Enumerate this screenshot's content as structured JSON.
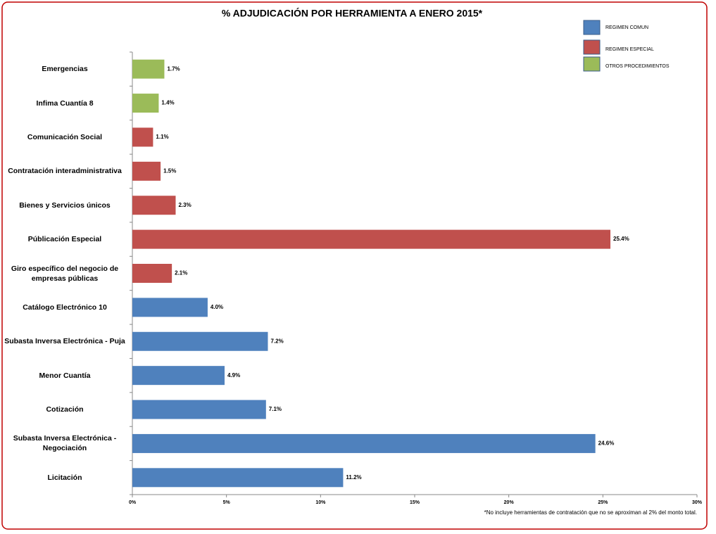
{
  "chart_data": {
    "type": "bar",
    "orientation": "horizontal",
    "title": "% ADJUDICACIÓN POR HERRAMIENTA A ENERO 2015*",
    "categories": [
      "Emergencias",
      "Infima Cuantía 8",
      "Comunicación Social",
      "Contratación interadministrativa",
      "Bienes y Servicios únicos",
      "Públicación Especial",
      "Giro específico del negocio de empresas públicas",
      "Catálogo Electrónico 10",
      "Subasta Inversa Electrónica - Puja",
      "Menor Cuantía",
      "Cotización",
      "Subasta Inversa Electrónica - Negociación",
      "Licitación"
    ],
    "series": [
      {
        "name": "REGIMEN COMUN",
        "color": "#4f81bd",
        "values": [
          null,
          null,
          null,
          null,
          null,
          null,
          null,
          4.0,
          7.2,
          4.9,
          7.1,
          24.6,
          11.2
        ],
        "value_labels": [
          null,
          null,
          null,
          null,
          null,
          null,
          null,
          "4.0%",
          "7.2%",
          "4.9%",
          "7.1%",
          "24.6%",
          "11.2%"
        ]
      },
      {
        "name": "REGIMEN ESPECIAL",
        "color": "#c0504d",
        "values": [
          null,
          null,
          1.1,
          1.5,
          2.3,
          25.4,
          2.1,
          null,
          null,
          null,
          null,
          null,
          null
        ],
        "value_labels": [
          null,
          null,
          "1.1%",
          "1.5%",
          "2.3%",
          "25.4%",
          "2.1%",
          null,
          null,
          null,
          null,
          null,
          null
        ]
      },
      {
        "name": "OTROS PROCEDIMIENTOS",
        "color": "#9bbb59",
        "values": [
          1.7,
          1.4,
          null,
          null,
          null,
          null,
          null,
          null,
          null,
          null,
          null,
          null,
          null
        ],
        "value_labels": [
          "1.7%",
          "1.4%",
          null,
          null,
          null,
          null,
          null,
          null,
          null,
          null,
          null,
          null,
          null
        ]
      }
    ],
    "xlim": [
      0,
      30
    ],
    "xticks": [
      {
        "value": 0,
        "label": "0%"
      },
      {
        "value": 5,
        "label": "5%"
      },
      {
        "value": 10,
        "label": "10%"
      },
      {
        "value": 15,
        "label": "15%"
      },
      {
        "value": 20,
        "label": "20%"
      },
      {
        "value": 25,
        "label": "25%"
      },
      {
        "value": 30,
        "label": "30%"
      }
    ],
    "legend_position": "top-right",
    "footnote": "*No incluye herramientas de contratación que no se aproximan al 2% del monto total."
  }
}
